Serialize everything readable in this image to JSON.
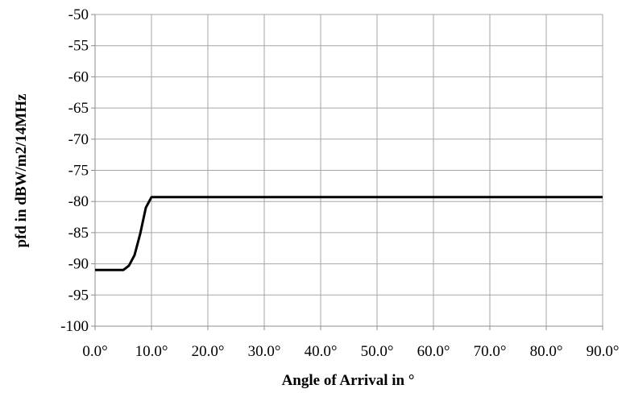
{
  "chart_data": {
    "type": "line",
    "xlabel": "Angle of Arrival in °",
    "ylabel": "pfd in dBW/m2/14MHz",
    "xlim": [
      0,
      90
    ],
    "ylim": [
      -100,
      -50
    ],
    "x_ticks": [
      0,
      10,
      20,
      30,
      40,
      50,
      60,
      70,
      80,
      90
    ],
    "x_tick_labels": [
      "0.0°",
      "10.0°",
      "20.0°",
      "30.0°",
      "40.0°",
      "50.0°",
      "60.0°",
      "70.0°",
      "80.0°",
      "90.0°"
    ],
    "y_ticks": [
      -50,
      -55,
      -60,
      -65,
      -70,
      -75,
      -80,
      -85,
      -90,
      -95,
      -100
    ],
    "y_tick_labels": [
      "-50",
      "-55",
      "-60",
      "-65",
      "-70",
      "-75",
      "-80",
      "-85",
      "-90",
      "-95",
      "-100"
    ],
    "grid": true,
    "legend": "none",
    "series": [
      {
        "color": "#000000",
        "x": [
          0,
          1,
          2,
          3,
          4,
          5,
          6,
          7,
          8,
          9,
          10,
          90
        ],
        "y": [
          -91,
          -91,
          -91,
          -91,
          -91,
          -91,
          -90.3,
          -88.6,
          -85.2,
          -81,
          -79.3,
          -79.3
        ]
      }
    ]
  }
}
